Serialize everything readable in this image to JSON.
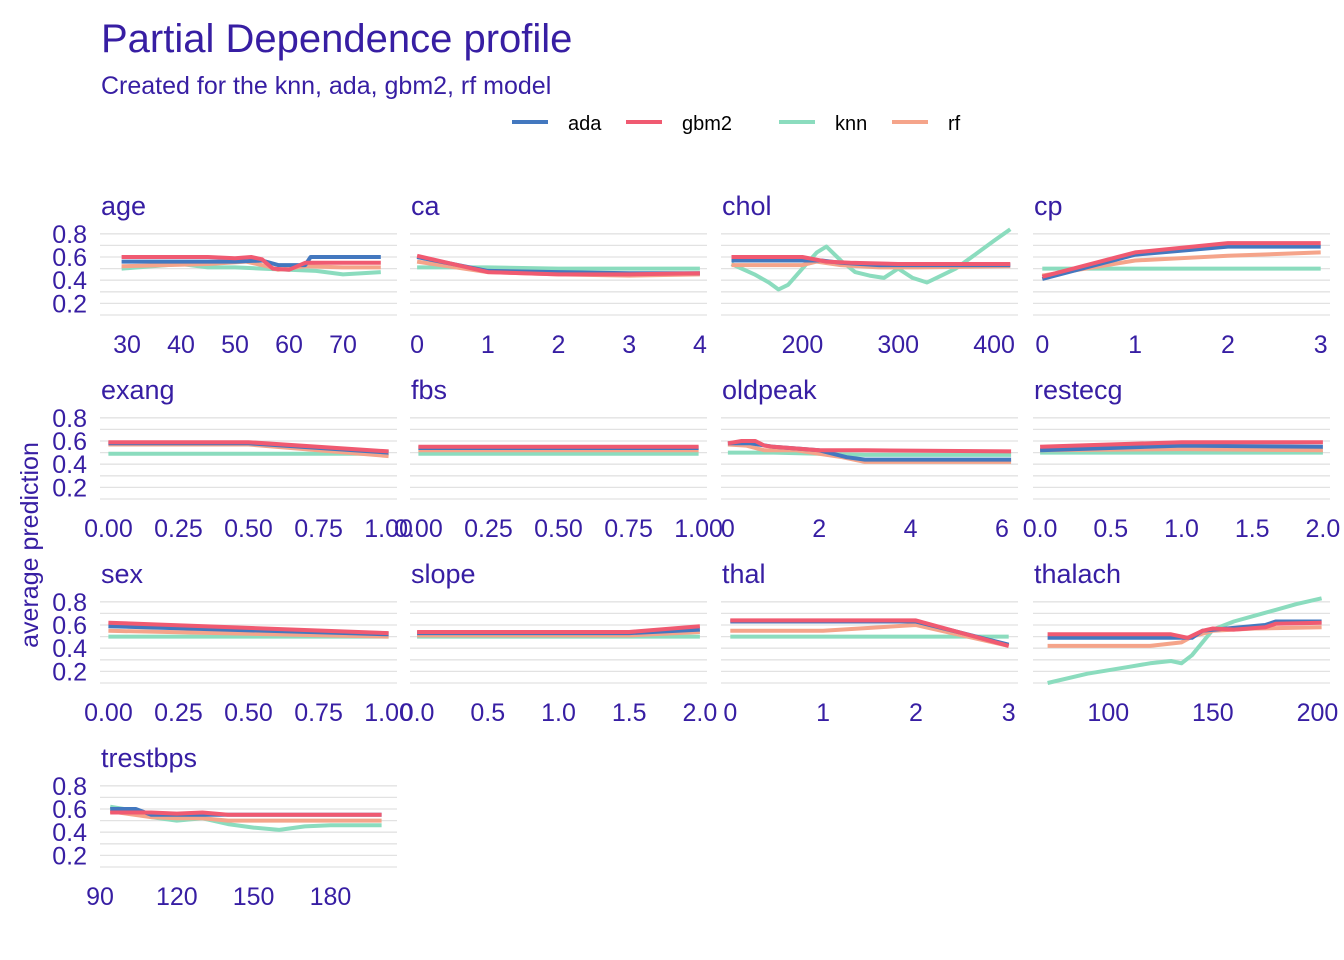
{
  "title": "Partial Dependence profile",
  "subtitle": "Created for the knn, ada, gbm2, rf model",
  "chart_data": {
    "type": "line",
    "title": "Partial Dependence profile",
    "subtitle": "Created for the knn, ada, gbm2, rf model",
    "ylabel": "average prediction",
    "ylim": [
      0.1,
      0.85
    ],
    "yticks": [
      0.2,
      0.4,
      0.6,
      0.8
    ],
    "grid": true,
    "legend_position": "top",
    "series_order": [
      "ada",
      "gbm2",
      "knn",
      "rf"
    ],
    "colors": {
      "ada": "#4378bf",
      "gbm2": "#f05a71",
      "knn": "#8bdcbe",
      "rf": "#f5a48a"
    },
    "panels": [
      {
        "variable": "age",
        "xlim": [
          25,
          80
        ],
        "xticks": [
          30,
          40,
          50,
          60,
          70
        ],
        "series": {
          "ada": {
            "x": [
              29,
              45,
              50,
              55,
              58,
              63,
              64,
              70,
              77
            ],
            "y": [
              0.56,
              0.56,
              0.56,
              0.57,
              0.53,
              0.53,
              0.6,
              0.6,
              0.6
            ]
          },
          "gbm2": {
            "x": [
              29,
              45,
              50,
              53,
              55,
              57,
              60,
              63,
              70,
              77
            ],
            "y": [
              0.6,
              0.6,
              0.59,
              0.6,
              0.58,
              0.5,
              0.49,
              0.55,
              0.55,
              0.55
            ]
          },
          "knn": {
            "x": [
              29,
              40,
              45,
              50,
              55,
              60,
              65,
              70,
              77
            ],
            "y": [
              0.5,
              0.54,
              0.51,
              0.51,
              0.5,
              0.49,
              0.48,
              0.45,
              0.47
            ]
          },
          "rf": {
            "x": [
              29,
              45,
              52,
              56,
              58,
              63,
              70,
              77
            ],
            "y": [
              0.52,
              0.54,
              0.56,
              0.52,
              0.49,
              0.52,
              0.51,
              0.51
            ]
          }
        }
      },
      {
        "variable": "ca",
        "xlim": [
          -0.1,
          4.1
        ],
        "xticks": [
          0,
          1,
          2,
          3,
          4
        ],
        "series": {
          "ada": {
            "x": [
              0,
              1,
              2,
              3,
              4
            ],
            "y": [
              0.6,
              0.48,
              0.47,
              0.46,
              0.46
            ]
          },
          "gbm2": {
            "x": [
              0,
              1,
              2,
              3,
              4
            ],
            "y": [
              0.61,
              0.47,
              0.45,
              0.45,
              0.46
            ]
          },
          "knn": {
            "x": [
              0,
              1,
              2,
              3,
              4
            ],
            "y": [
              0.51,
              0.51,
              0.5,
              0.5,
              0.5
            ]
          },
          "rf": {
            "x": [
              0,
              1,
              2,
              3,
              4
            ],
            "y": [
              0.56,
              0.47,
              0.45,
              0.44,
              0.45
            ]
          }
        }
      },
      {
        "variable": "chol",
        "xlim": [
          115,
          425
        ],
        "xticks": [
          200,
          300,
          400
        ],
        "series": {
          "ada": {
            "x": [
              126,
              200,
              220,
              240,
              280,
              320,
              417
            ],
            "y": [
              0.57,
              0.57,
              0.57,
              0.55,
              0.53,
              0.53,
              0.53
            ]
          },
          "gbm2": {
            "x": [
              126,
              200,
              225,
              250,
              300,
              340,
              417
            ],
            "y": [
              0.6,
              0.6,
              0.56,
              0.55,
              0.54,
              0.54,
              0.54
            ]
          },
          "knn": {
            "x": [
              126,
              150,
              165,
              175,
              185,
              200,
              215,
              225,
              240,
              255,
              270,
              285,
              300,
              315,
              330,
              345,
              360,
              380,
              400,
              417
            ],
            "y": [
              0.54,
              0.45,
              0.38,
              0.32,
              0.36,
              0.5,
              0.64,
              0.69,
              0.57,
              0.47,
              0.44,
              0.42,
              0.5,
              0.42,
              0.38,
              0.44,
              0.5,
              0.62,
              0.74,
              0.84
            ]
          },
          "rf": {
            "x": [
              126,
              200,
              215,
              240,
              280,
              320,
              417
            ],
            "y": [
              0.53,
              0.53,
              0.56,
              0.53,
              0.51,
              0.51,
              0.52
            ]
          }
        }
      },
      {
        "variable": "cp",
        "xlim": [
          -0.1,
          3.1
        ],
        "xticks": [
          0,
          1,
          2,
          3
        ],
        "series": {
          "ada": {
            "x": [
              0,
              1,
              2,
              3
            ],
            "y": [
              0.41,
              0.62,
              0.69,
              0.69
            ]
          },
          "gbm2": {
            "x": [
              0,
              1,
              2,
              3
            ],
            "y": [
              0.43,
              0.64,
              0.72,
              0.72
            ]
          },
          "knn": {
            "x": [
              0,
              1,
              2,
              3
            ],
            "y": [
              0.5,
              0.5,
              0.5,
              0.5
            ]
          },
          "rf": {
            "x": [
              0,
              1,
              2,
              3
            ],
            "y": [
              0.44,
              0.57,
              0.61,
              0.64
            ]
          }
        }
      },
      {
        "variable": "exang",
        "xlim": [
          -0.03,
          1.03
        ],
        "xticks": [
          0.0,
          0.25,
          0.5,
          0.75,
          1.0
        ],
        "xtick_labels": [
          "0.00",
          "0.25",
          "0.50",
          "0.75",
          "1.00"
        ],
        "series": {
          "ada": {
            "x": [
              0,
              0.5,
              1
            ],
            "y": [
              0.58,
              0.58,
              0.5
            ]
          },
          "gbm2": {
            "x": [
              0,
              0.5,
              1
            ],
            "y": [
              0.59,
              0.59,
              0.51
            ]
          },
          "knn": {
            "x": [
              0,
              1
            ],
            "y": [
              0.49,
              0.49
            ]
          },
          "rf": {
            "x": [
              0,
              0.5,
              1
            ],
            "y": [
              0.57,
              0.57,
              0.47
            ]
          }
        }
      },
      {
        "variable": "fbs",
        "xlim": [
          -0.03,
          1.03
        ],
        "xticks": [
          0.0,
          0.25,
          0.5,
          0.75,
          1.0
        ],
        "xtick_labels": [
          "0.00",
          "0.25",
          "0.50",
          "0.75",
          "1.00"
        ],
        "series": {
          "ada": {
            "x": [
              0,
              1
            ],
            "y": [
              0.54,
              0.54
            ]
          },
          "gbm2": {
            "x": [
              0,
              1
            ],
            "y": [
              0.55,
              0.55
            ]
          },
          "knn": {
            "x": [
              0,
              1
            ],
            "y": [
              0.49,
              0.49
            ]
          },
          "rf": {
            "x": [
              0,
              1
            ],
            "y": [
              0.52,
              0.52
            ]
          }
        }
      },
      {
        "variable": "oldpeak",
        "xlim": [
          -0.15,
          6.35
        ],
        "xticks": [
          0,
          2,
          4,
          6
        ],
        "series": {
          "ada": {
            "x": [
              0,
              0.5,
              1,
              2,
              2.6,
              3,
              6.2
            ],
            "y": [
              0.58,
              0.58,
              0.55,
              0.52,
              0.46,
              0.44,
              0.44
            ]
          },
          "gbm2": {
            "x": [
              0,
              0.3,
              0.6,
              0.8,
              1,
              2,
              3,
              6.2
            ],
            "y": [
              0.58,
              0.6,
              0.6,
              0.56,
              0.55,
              0.52,
              0.52,
              0.51
            ]
          },
          "knn": {
            "x": [
              0,
              1,
              2,
              3,
              6.2
            ],
            "y": [
              0.5,
              0.5,
              0.49,
              0.48,
              0.48
            ]
          },
          "rf": {
            "x": [
              0,
              0.4,
              0.8,
              1.5,
              2,
              2.5,
              3,
              6.2
            ],
            "y": [
              0.57,
              0.56,
              0.52,
              0.52,
              0.49,
              0.46,
              0.42,
              0.42
            ]
          }
        }
      },
      {
        "variable": "restecg",
        "xlim": [
          -0.05,
          2.05
        ],
        "xticks": [
          0.0,
          0.5,
          1.0,
          1.5,
          2.0
        ],
        "xtick_labels": [
          "0.0",
          "0.5",
          "1.0",
          "1.5",
          "2.0"
        ],
        "series": {
          "ada": {
            "x": [
              0,
              1,
              2
            ],
            "y": [
              0.52,
              0.56,
              0.55
            ]
          },
          "gbm2": {
            "x": [
              0,
              1,
              2
            ],
            "y": [
              0.55,
              0.59,
              0.59
            ]
          },
          "knn": {
            "x": [
              0,
              1,
              2
            ],
            "y": [
              0.5,
              0.5,
              0.5
            ]
          },
          "rf": {
            "x": [
              0,
              1,
              2
            ],
            "y": [
              0.52,
              0.53,
              0.52
            ]
          }
        }
      },
      {
        "variable": "sex",
        "xlim": [
          -0.03,
          1.03
        ],
        "xticks": [
          0.0,
          0.25,
          0.5,
          0.75,
          1.0
        ],
        "xtick_labels": [
          "0.00",
          "0.25",
          "0.50",
          "0.75",
          "1.00"
        ],
        "series": {
          "ada": {
            "x": [
              0,
              1
            ],
            "y": [
              0.59,
              0.52
            ]
          },
          "gbm2": {
            "x": [
              0,
              1
            ],
            "y": [
              0.62,
              0.53
            ]
          },
          "knn": {
            "x": [
              0,
              1
            ],
            "y": [
              0.5,
              0.5
            ]
          },
          "rf": {
            "x": [
              0,
              1
            ],
            "y": [
              0.55,
              0.5
            ]
          }
        }
      },
      {
        "variable": "slope",
        "xlim": [
          -0.05,
          2.05
        ],
        "xticks": [
          0.0,
          0.5,
          1.0,
          1.5,
          2.0
        ],
        "xtick_labels": [
          "0.0",
          "0.5",
          "1.0",
          "1.5",
          "2.0"
        ],
        "series": {
          "ada": {
            "x": [
              0,
              1,
              1.5,
              2
            ],
            "y": [
              0.53,
              0.53,
              0.53,
              0.56
            ]
          },
          "gbm2": {
            "x": [
              0,
              1,
              1.5,
              2
            ],
            "y": [
              0.54,
              0.54,
              0.54,
              0.59
            ]
          },
          "knn": {
            "x": [
              0,
              2
            ],
            "y": [
              0.5,
              0.5
            ]
          },
          "rf": {
            "x": [
              0,
              1,
              1.5,
              2
            ],
            "y": [
              0.51,
              0.51,
              0.51,
              0.54
            ]
          }
        }
      },
      {
        "variable": "thal",
        "xlim": [
          -0.1,
          3.1
        ],
        "xticks": [
          0,
          1,
          2,
          3
        ],
        "series": {
          "ada": {
            "x": [
              0,
              1,
              2,
              3
            ],
            "y": [
              0.63,
              0.63,
              0.63,
              0.43
            ]
          },
          "gbm2": {
            "x": [
              0,
              1,
              2,
              3
            ],
            "y": [
              0.64,
              0.64,
              0.64,
              0.42
            ]
          },
          "knn": {
            "x": [
              0,
              2,
              3
            ],
            "y": [
              0.5,
              0.5,
              0.5
            ]
          },
          "rf": {
            "x": [
              0,
              1,
              2,
              3
            ],
            "y": [
              0.55,
              0.55,
              0.6,
              0.42
            ]
          }
        }
      },
      {
        "variable": "thalach",
        "xlim": [
          64,
          206
        ],
        "xticks": [
          100,
          150,
          200
        ],
        "series": {
          "ada": {
            "x": [
              71,
              130,
              140,
              145,
              175,
              180,
              202
            ],
            "y": [
              0.49,
              0.49,
              0.49,
              0.55,
              0.6,
              0.63,
              0.63
            ]
          },
          "gbm2": {
            "x": [
              71,
              130,
              138,
              145,
              150,
              160,
              175,
              180,
              202
            ],
            "y": [
              0.52,
              0.52,
              0.49,
              0.55,
              0.57,
              0.56,
              0.58,
              0.61,
              0.62
            ]
          },
          "knn": {
            "x": [
              71,
              90,
              110,
              120,
              130,
              135,
              140,
              150,
              160,
              170,
              180,
              190,
              202
            ],
            "y": [
              0.1,
              0.18,
              0.24,
              0.27,
              0.29,
              0.27,
              0.34,
              0.56,
              0.63,
              0.68,
              0.73,
              0.78,
              0.83
            ]
          },
          "rf": {
            "x": [
              71,
              120,
              135,
              140,
              150,
              160,
              170,
              202
            ],
            "y": [
              0.42,
              0.42,
              0.45,
              0.5,
              0.55,
              0.56,
              0.57,
              0.58
            ]
          }
        }
      },
      {
        "variable": "trestbps",
        "xlim": [
          90,
          206
        ],
        "xticks": [
          90,
          120,
          150,
          180
        ],
        "series": {
          "ada": {
            "x": [
              94,
              104,
              110,
              130,
              140,
              200
            ],
            "y": [
              0.6,
              0.6,
              0.55,
              0.55,
              0.55,
              0.55
            ]
          },
          "gbm2": {
            "x": [
              94,
              110,
              120,
              130,
              140,
              200
            ],
            "y": [
              0.57,
              0.57,
              0.56,
              0.57,
              0.55,
              0.55
            ]
          },
          "knn": {
            "x": [
              94,
              105,
              110,
              120,
              130,
              140,
              150,
              160,
              170,
              180,
              200
            ],
            "y": [
              0.62,
              0.58,
              0.53,
              0.5,
              0.52,
              0.47,
              0.44,
              0.42,
              0.45,
              0.46,
              0.46
            ]
          },
          "rf": {
            "x": [
              94,
              110,
              120,
              130,
              140,
              150,
              200
            ],
            "y": [
              0.58,
              0.53,
              0.52,
              0.52,
              0.5,
              0.5,
              0.5
            ]
          }
        }
      }
    ]
  }
}
